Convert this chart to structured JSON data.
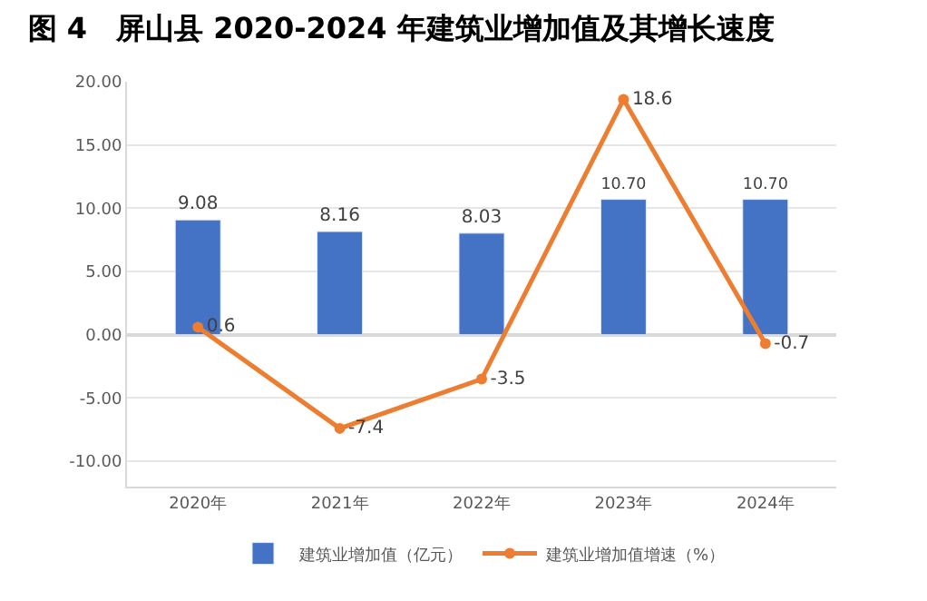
{
  "chart_data": {
    "type": "bar",
    "title": "图 4　屏山县 2020-2024 年建筑业增加值及其增长速度",
    "categories": [
      "2020年",
      "2021年",
      "2022年",
      "2023年",
      "2024年"
    ],
    "series": [
      {
        "name": "建筑业增加值（亿元）",
        "color": "#4472c4",
        "values": [
          9.08,
          8.16,
          8.03,
          10.7,
          10.7
        ],
        "value_labels": [
          "9.08",
          "8.16",
          "8.03",
          "10.70",
          "10.70"
        ]
      },
      {
        "name": "建筑业增加值增速（%）",
        "type": "line",
        "color": "#ed7d31",
        "marker": "circle",
        "values": [
          0.6,
          -7.4,
          -3.5,
          18.6,
          -0.7
        ],
        "value_labels": [
          "0.6",
          "-7.4",
          "-3.5",
          "18.6",
          "-0.7"
        ]
      }
    ],
    "ylim": [
      -12,
      20
    ],
    "yticks": [
      {
        "value": 20,
        "label": "20.00"
      },
      {
        "value": 15,
        "label": "15.00"
      },
      {
        "value": 10,
        "label": "10.00"
      },
      {
        "value": 5,
        "label": "5.00"
      },
      {
        "value": 0,
        "label": "0.00"
      },
      {
        "value": -5,
        "label": "-5.00"
      },
      {
        "value": -10,
        "label": "-10.00"
      }
    ],
    "grid": "y",
    "legend": "bottom"
  }
}
